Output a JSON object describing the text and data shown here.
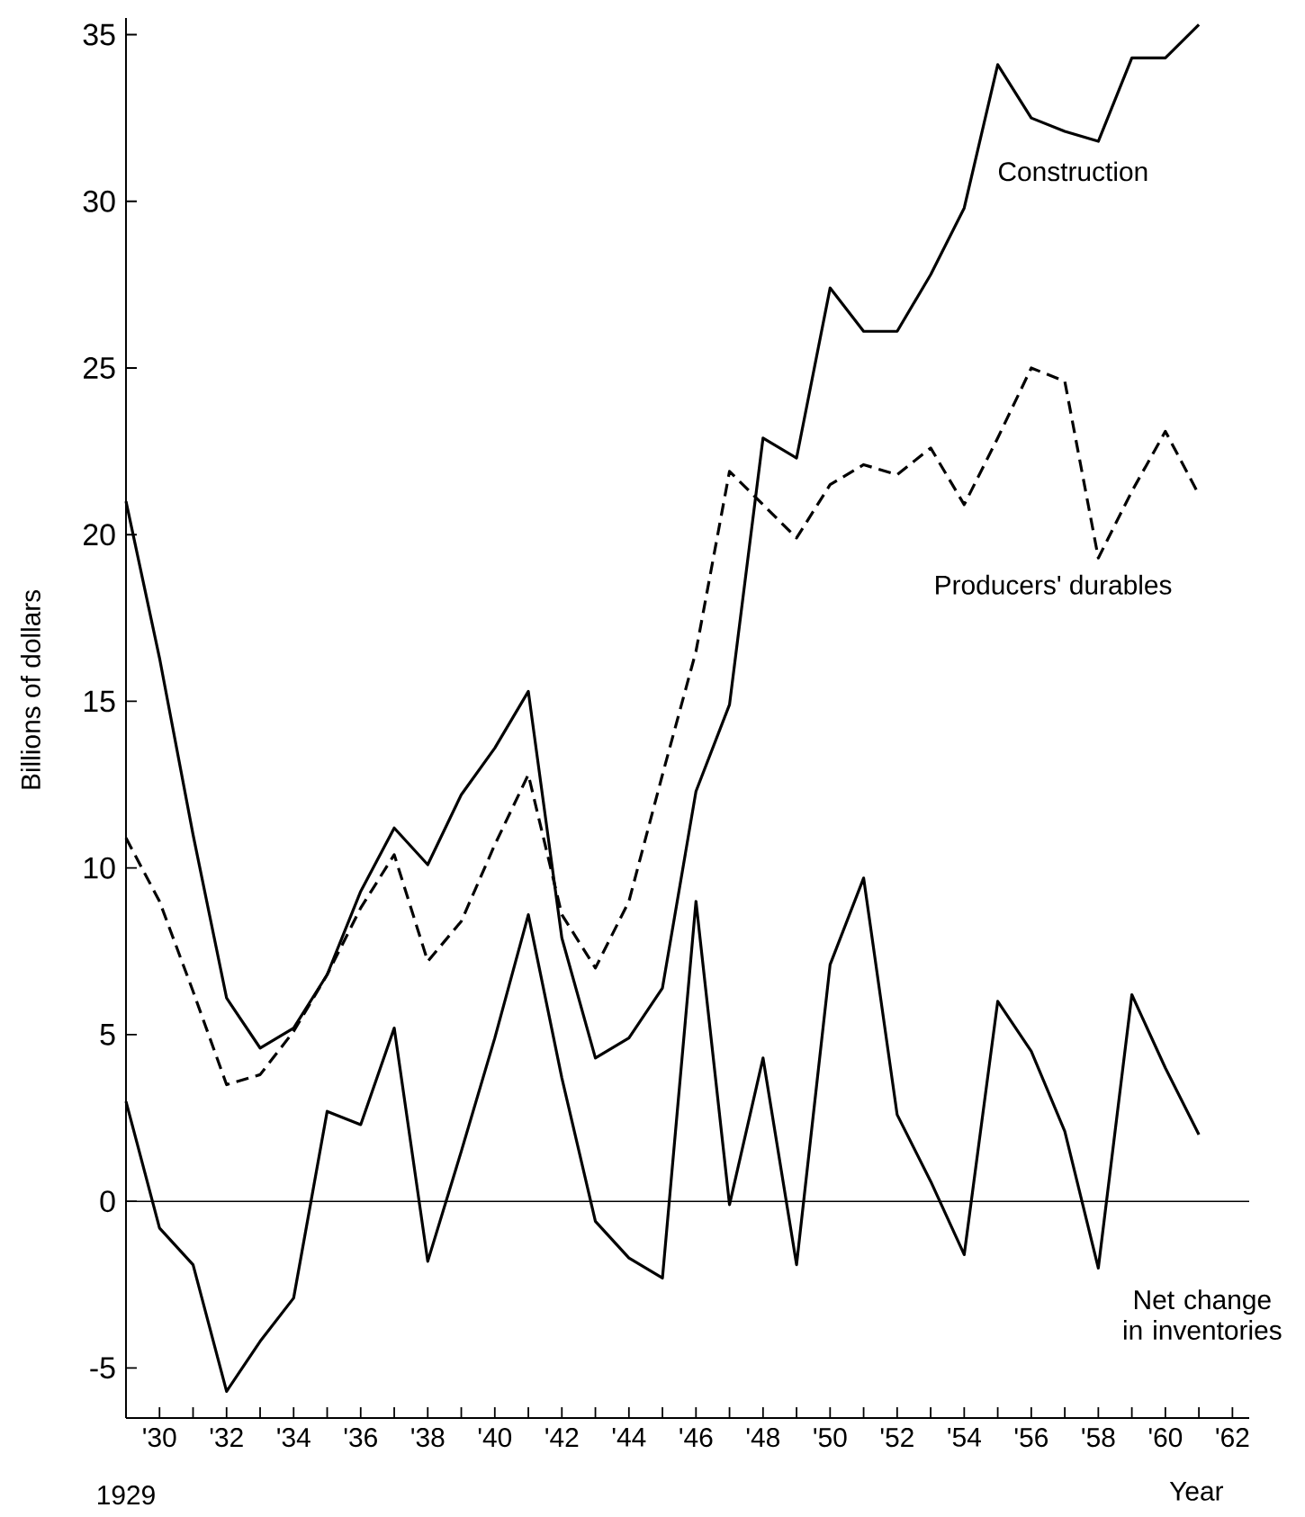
{
  "chart_data": {
    "type": "line",
    "ylabel": "Billions of dollars",
    "xlabel": "Year",
    "x": [
      1929,
      1930,
      1931,
      1932,
      1933,
      1934,
      1935,
      1936,
      1937,
      1938,
      1939,
      1940,
      1941,
      1942,
      1943,
      1944,
      1945,
      1946,
      1947,
      1948,
      1949,
      1950,
      1951,
      1952,
      1953,
      1954,
      1955,
      1956,
      1957,
      1958,
      1959,
      1960,
      1961
    ],
    "series": [
      {
        "name": "Construction",
        "color": "#000000",
        "line_style": "solid",
        "values": [
          21.0,
          16.3,
          11.0,
          6.1,
          4.6,
          5.2,
          6.8,
          9.3,
          11.2,
          10.1,
          12.2,
          13.6,
          15.3,
          7.9,
          4.3,
          4.9,
          6.4,
          12.3,
          14.9,
          22.9,
          22.3,
          27.4,
          26.1,
          26.1,
          27.8,
          29.8,
          34.1,
          32.5,
          32.1,
          31.8,
          34.3,
          34.3,
          35.3
        ]
      },
      {
        "name": "Producers' durables",
        "color": "#000000",
        "line_style": "dashed",
        "values": [
          10.9,
          9.0,
          6.3,
          3.5,
          3.8,
          5.1,
          6.8,
          8.8,
          10.4,
          7.2,
          8.4,
          10.7,
          12.8,
          8.6,
          7.0,
          9.0,
          12.8,
          16.5,
          21.9,
          20.9,
          19.9,
          21.5,
          22.1,
          21.8,
          22.6,
          20.9,
          22.9,
          25.0,
          24.6,
          19.3,
          21.3,
          23.1,
          21.2
        ]
      },
      {
        "name": "Net change in inventories",
        "color": "#000000",
        "line_style": "solid",
        "values": [
          3.0,
          -0.8,
          -1.9,
          -5.7,
          -4.2,
          -2.9,
          2.7,
          2.3,
          5.2,
          -1.8,
          1.5,
          4.9,
          8.6,
          3.7,
          -0.6,
          -1.7,
          -2.3,
          9.0,
          -0.1,
          4.3,
          -1.9,
          7.1,
          9.7,
          2.6,
          0.6,
          -1.6,
          6.0,
          4.5,
          2.1,
          -2.0,
          6.2,
          4.0,
          2.0
        ]
      }
    ],
    "xlim": [
      1929,
      1962.5
    ],
    "annotations": [
      "1929"
    ],
    "xticks": [
      {
        "value": 1929,
        "label": null
      },
      {
        "value": 1930,
        "label": "'30"
      },
      {
        "value": 1931,
        "label": null
      },
      {
        "value": 1932,
        "label": "'32"
      },
      {
        "value": 1933,
        "label": null
      },
      {
        "value": 1934,
        "label": "'34"
      },
      {
        "value": 1935,
        "label": null
      },
      {
        "value": 1936,
        "label": "'36"
      },
      {
        "value": 1937,
        "label": null
      },
      {
        "value": 1938,
        "label": "'38"
      },
      {
        "value": 1939,
        "label": null
      },
      {
        "value": 1940,
        "label": "'40"
      },
      {
        "value": 1941,
        "label": null
      },
      {
        "value": 1942,
        "label": "'42"
      },
      {
        "value": 1943,
        "label": null
      },
      {
        "value": 1944,
        "label": "'44"
      },
      {
        "value": 1945,
        "label": null
      },
      {
        "value": 1946,
        "label": "'46"
      },
      {
        "value": 1947,
        "label": null
      },
      {
        "value": 1948,
        "label": "'48"
      },
      {
        "value": 1949,
        "label": null
      },
      {
        "value": 1950,
        "label": "'50"
      },
      {
        "value": 1951,
        "label": null
      },
      {
        "value": 1952,
        "label": "'52"
      },
      {
        "value": 1953,
        "label": null
      },
      {
        "value": 1954,
        "label": "'54"
      },
      {
        "value": 1955,
        "label": null
      },
      {
        "value": 1956,
        "label": "'56"
      },
      {
        "value": 1957,
        "label": null
      },
      {
        "value": 1958,
        "label": "'58"
      },
      {
        "value": 1959,
        "label": null
      },
      {
        "value": 1960,
        "label": "'60"
      },
      {
        "value": 1961,
        "label": null
      },
      {
        "value": 1962,
        "label": "'62"
      }
    ],
    "ylim": [
      -6.5,
      35.5
    ],
    "yticks": [
      -5,
      0,
      5,
      10,
      15,
      20,
      25,
      30,
      35
    ],
    "ref_lines": [
      {
        "axis": "y",
        "value": 0,
        "color": "#000000"
      }
    ]
  }
}
